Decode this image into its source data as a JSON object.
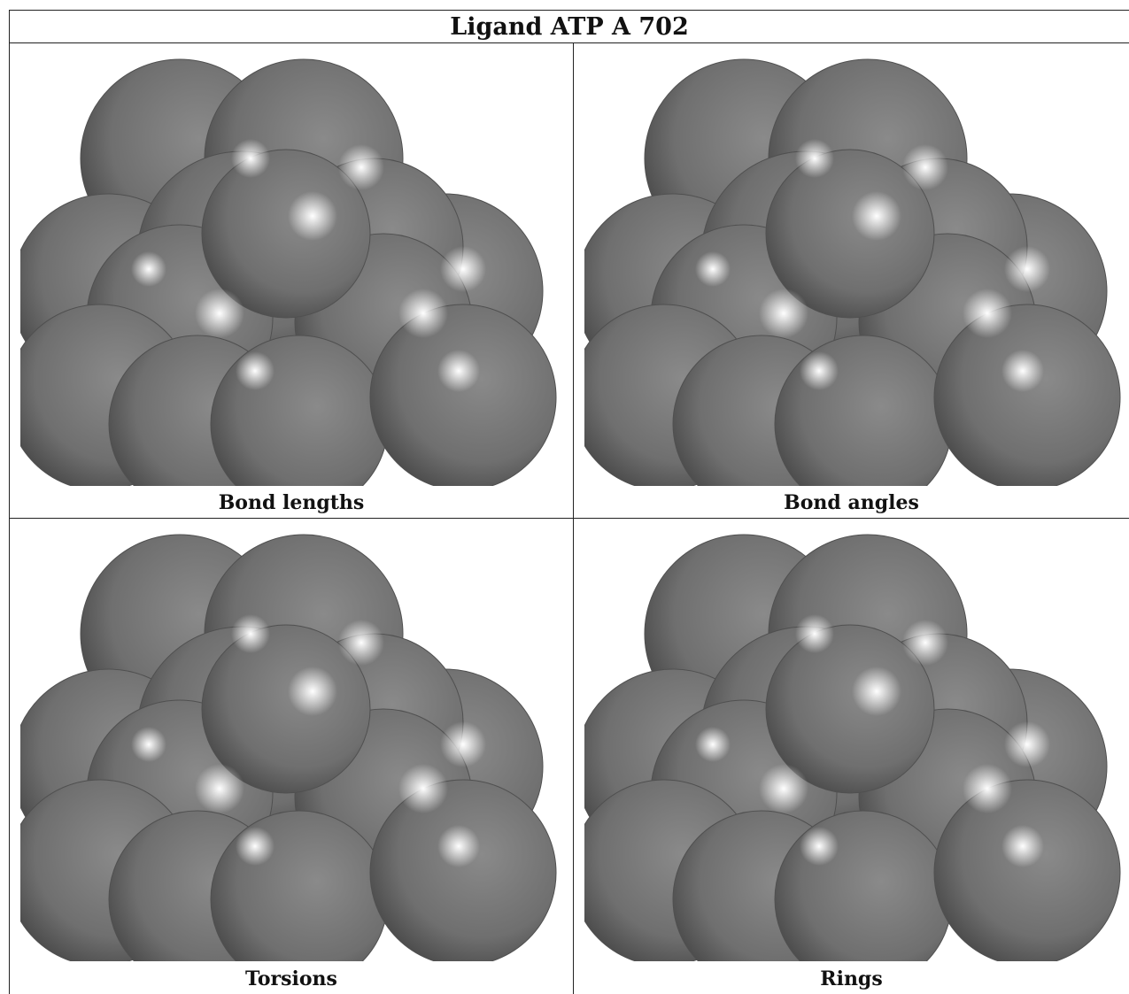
{
  "title": "Ligand ATP A 702",
  "panels": [
    {
      "caption": "Bond lengths"
    },
    {
      "caption": "Bond angles"
    },
    {
      "caption": "Torsions"
    },
    {
      "caption": "Rings"
    }
  ],
  "colors": {
    "sphere_base": "#6f6f6f",
    "sphere_dark": "#3a3a3a",
    "highlight": "#ffffff",
    "border": "#222222"
  }
}
